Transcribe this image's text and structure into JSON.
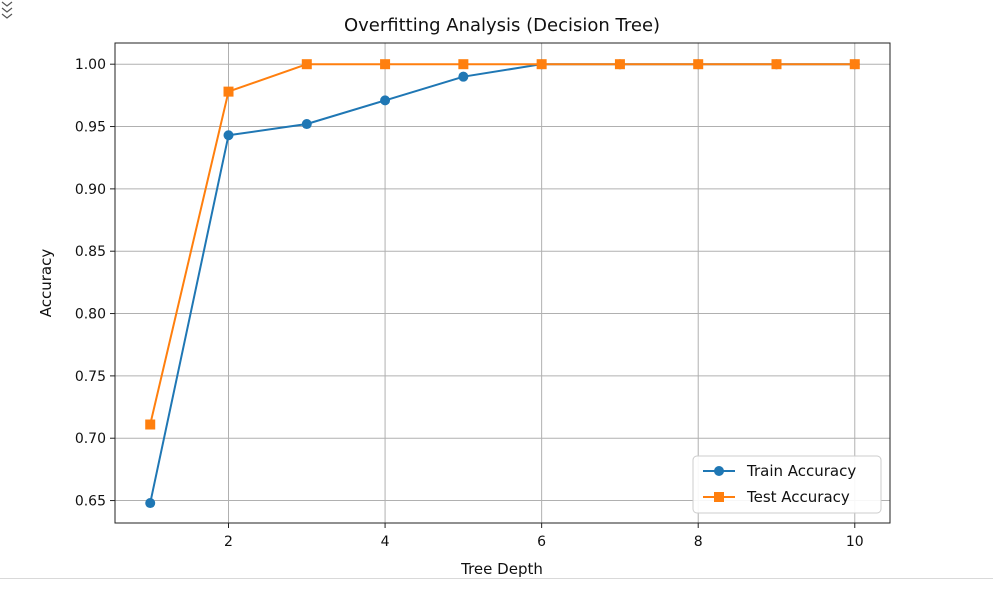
{
  "chart_data": {
    "type": "line",
    "title": "Overfitting Analysis (Decision Tree)",
    "xlabel": "Tree Depth",
    "ylabel": "Accuracy",
    "x": [
      1,
      2,
      3,
      4,
      5,
      6,
      7,
      8,
      9,
      10
    ],
    "xlim": [
      0.55,
      10.45
    ],
    "ylim": [
      0.632,
      1.017
    ],
    "xticks": [
      2,
      4,
      6,
      8,
      10
    ],
    "xtick_labels": [
      "2",
      "4",
      "6",
      "8",
      "10"
    ],
    "yticks": [
      0.65,
      0.7,
      0.75,
      0.8,
      0.85,
      0.9,
      0.95,
      1.0
    ],
    "ytick_labels": [
      "0.65",
      "0.70",
      "0.75",
      "0.80",
      "0.85",
      "0.90",
      "0.95",
      "1.00"
    ],
    "grid": true,
    "legend_position": "bottom-right",
    "series": [
      {
        "name": "Train Accuracy",
        "color": "#1f77b4",
        "marker": "circle",
        "values": [
          0.648,
          0.943,
          0.952,
          0.971,
          0.99,
          1.0,
          1.0,
          1.0,
          1.0,
          1.0
        ]
      },
      {
        "name": "Test Accuracy",
        "color": "#ff7f0e",
        "marker": "square",
        "values": [
          0.711,
          0.978,
          1.0,
          1.0,
          1.0,
          1.0,
          1.0,
          1.0,
          1.0,
          1.0
        ]
      }
    ]
  }
}
